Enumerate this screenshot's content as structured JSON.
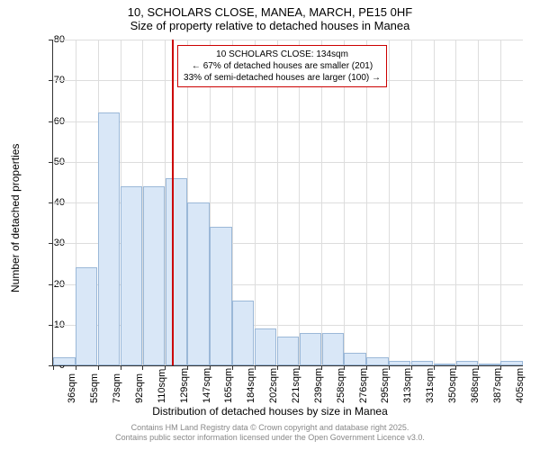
{
  "chart": {
    "type": "histogram",
    "title_line1": "10, SCHOLARS CLOSE, MANEA, MARCH, PE15 0HF",
    "title_line2": "Size of property relative to detached houses in Manea",
    "title_fontsize": 13,
    "x_axis_title": "Distribution of detached houses by size in Manea",
    "y_axis_title": "Number of detached properties",
    "axis_fontsize": 12,
    "tick_fontsize": 11,
    "background_color": "#ffffff",
    "bar_fill": "#d9e7f7",
    "bar_border": "#9bb8d8",
    "grid_color": "#dddddd",
    "ref_line_color": "#cc0000",
    "ref_line_value": 134,
    "ylim": [
      0,
      80
    ],
    "ytick_step": 10,
    "x_categories": [
      "36sqm",
      "55sqm",
      "73sqm",
      "92sqm",
      "110sqm",
      "129sqm",
      "147sqm",
      "165sqm",
      "184sqm",
      "202sqm",
      "221sqm",
      "239sqm",
      "258sqm",
      "276sqm",
      "295sqm",
      "313sqm",
      "331sqm",
      "350sqm",
      "368sqm",
      "387sqm",
      "405sqm"
    ],
    "bar_values": [
      2,
      24,
      62,
      44,
      44,
      46,
      40,
      34,
      16,
      9,
      7,
      8,
      8,
      3,
      2,
      1,
      1,
      0.5,
      1,
      0.5,
      1
    ],
    "callout": {
      "line1": "10 SCHOLARS CLOSE: 134sqm",
      "line2": "← 67% of detached houses are smaller (201)",
      "line3": "33% of semi-detached houses are larger (100) →"
    },
    "footer_line1": "Contains HM Land Registry data © Crown copyright and database right 2025.",
    "footer_line2": "Contains public sector information licensed under the Open Government Licence v3.0.",
    "footer_color": "#888888"
  }
}
